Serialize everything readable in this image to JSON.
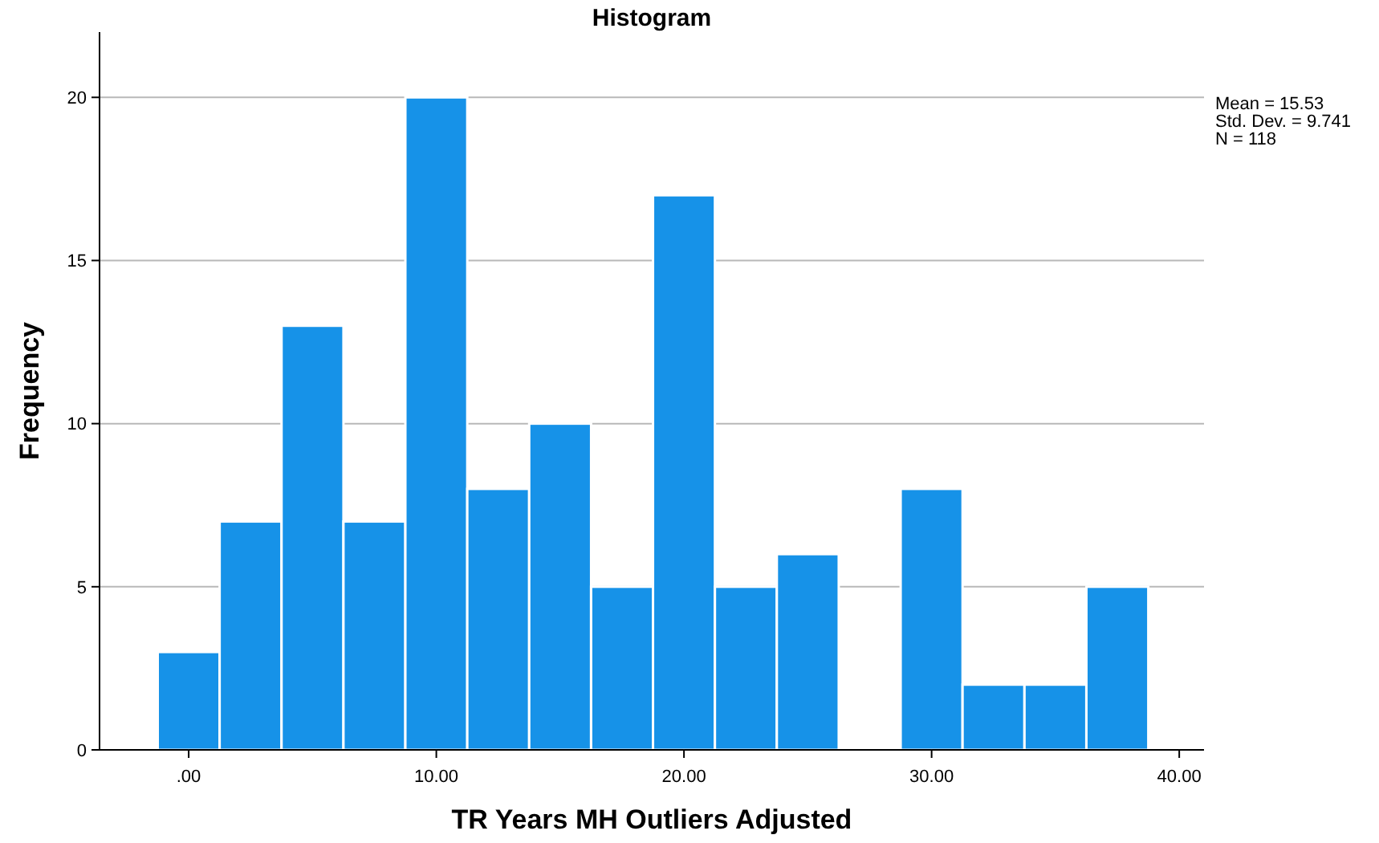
{
  "chart_data": {
    "type": "histogram",
    "title": "Histogram",
    "xlabel": "TR Years MH Outliers Adjusted",
    "ylabel": "Frequency",
    "bins": [
      -1.25,
      1.25,
      3.75,
      6.25,
      8.75,
      11.25,
      13.75,
      16.25,
      18.75,
      21.25,
      23.75,
      26.25,
      28.75,
      31.25,
      33.75,
      36.25,
      38.75
    ],
    "values": [
      3,
      7,
      13,
      7,
      20,
      8,
      10,
      5,
      17,
      5,
      6,
      0,
      8,
      2,
      2,
      5
    ],
    "color": "#1692e8",
    "xlim": [
      -3.6,
      41
    ],
    "xticks": [
      {
        "value": 0,
        "label": ".00"
      },
      {
        "value": 10,
        "label": "10.00"
      },
      {
        "value": 20,
        "label": "20.00"
      },
      {
        "value": 30,
        "label": "30.00"
      },
      {
        "value": 40,
        "label": "40.00"
      }
    ],
    "ylim": [
      0,
      22
    ],
    "yticks": [
      0,
      5,
      10,
      15,
      20
    ],
    "grid": "y",
    "annotations": [
      "Mean = 15.53",
      "Std. Dev. = 9.741",
      "N = 118"
    ]
  }
}
